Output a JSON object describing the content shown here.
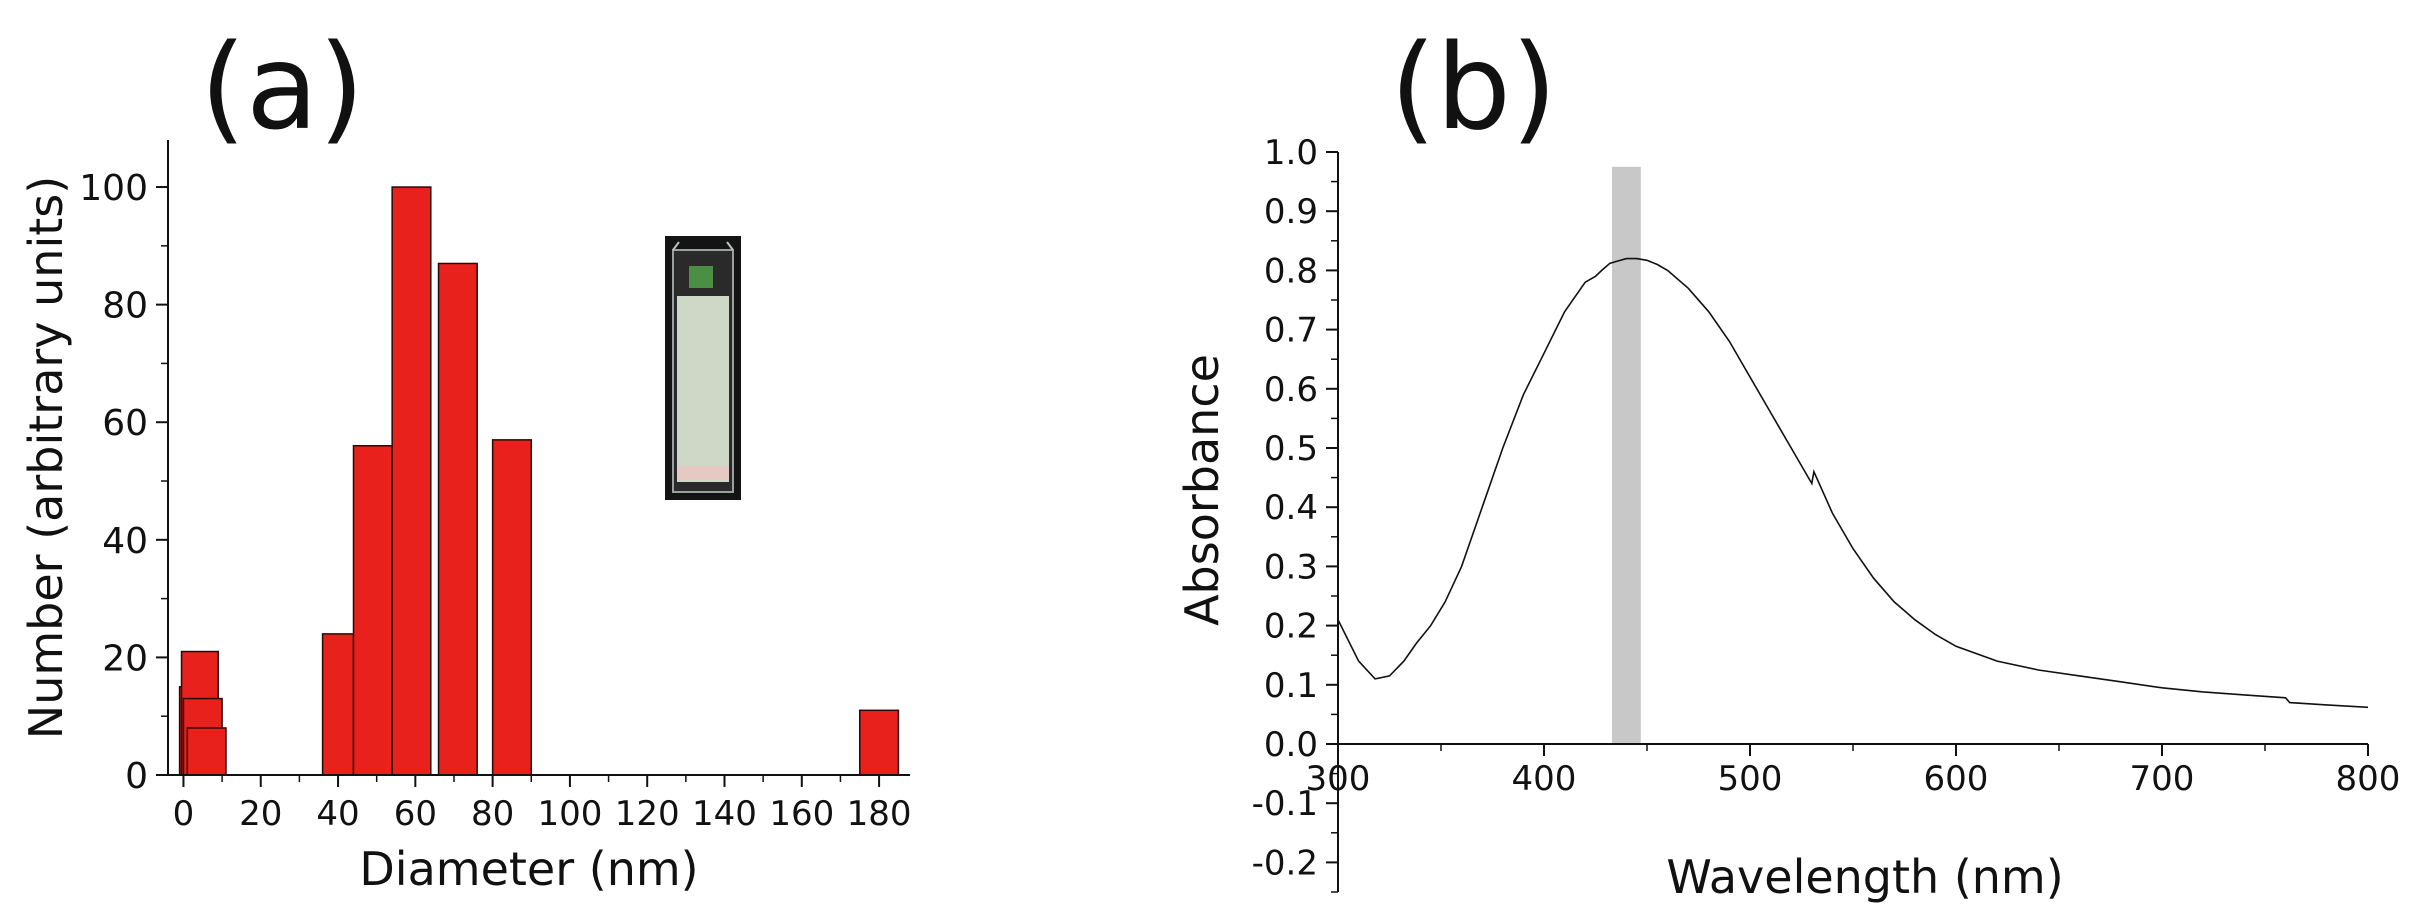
{
  "panels": {
    "a": "(a)",
    "b": "(b)"
  },
  "chart_data": [
    {
      "panel": "(a)",
      "type": "bar",
      "xlabel": "Diameter (nm)",
      "ylabel": "Number (arbitrary units)",
      "xlim": [
        -4,
        188
      ],
      "ylim": [
        0,
        108
      ],
      "xticks": [
        0,
        20,
        40,
        60,
        80,
        100,
        120,
        140,
        160,
        180
      ],
      "yticks": [
        0,
        20,
        40,
        60,
        80,
        100
      ],
      "bars": [
        {
          "x0": -1,
          "x1": 0,
          "value": 15
        },
        {
          "x0": -0.5,
          "x1": 9,
          "value": 21
        },
        {
          "x0": 0,
          "x1": 10,
          "value": 13
        },
        {
          "x0": 1,
          "x1": 11,
          "value": 8
        },
        {
          "x0": 36,
          "x1": 44,
          "value": 24
        },
        {
          "x0": 44,
          "x1": 54,
          "value": 56
        },
        {
          "x0": 54,
          "x1": 64,
          "value": 100
        },
        {
          "x0": 66,
          "x1": 76,
          "value": 87
        },
        {
          "x0": 80,
          "x1": 90,
          "value": 57
        },
        {
          "x0": 175,
          "x1": 185,
          "value": 11
        }
      ],
      "bar_color": "#e8211c",
      "inset": "cuvette photo"
    },
    {
      "panel": "(b)",
      "type": "line",
      "xlabel": "Wavelength (nm)",
      "ylabel": "Absorbance",
      "xlim": [
        300,
        800
      ],
      "ylim": [
        -0.25,
        1.0
      ],
      "xticks": [
        300,
        400,
        500,
        600,
        700,
        800
      ],
      "yticks": [
        -0.2,
        -0.1,
        0.0,
        0.1,
        0.2,
        0.3,
        0.4,
        0.5,
        0.6,
        0.7,
        0.8,
        0.9,
        1.0
      ],
      "highlight_band": {
        "x0": 433,
        "x1": 447,
        "color": "#c8c8c8"
      },
      "series": [
        {
          "x": [
            300,
            310,
            318,
            325,
            332,
            338,
            345,
            352,
            360,
            370,
            380,
            390,
            400,
            410,
            420,
            425,
            428,
            432,
            435,
            440,
            445,
            450,
            455,
            460,
            470,
            480,
            490,
            500,
            510,
            520,
            530,
            531,
            540,
            550,
            560,
            570,
            580,
            590,
            600,
            620,
            640,
            660,
            680,
            700,
            720,
            740,
            760,
            762,
            780,
            800
          ],
          "y": [
            0.21,
            0.14,
            0.11,
            0.115,
            0.14,
            0.17,
            0.2,
            0.24,
            0.3,
            0.4,
            0.5,
            0.59,
            0.66,
            0.73,
            0.78,
            0.79,
            0.8,
            0.812,
            0.815,
            0.82,
            0.82,
            0.817,
            0.81,
            0.8,
            0.77,
            0.73,
            0.68,
            0.62,
            0.56,
            0.5,
            0.44,
            0.46,
            0.39,
            0.33,
            0.28,
            0.24,
            0.21,
            0.185,
            0.165,
            0.14,
            0.125,
            0.115,
            0.105,
            0.095,
            0.088,
            0.083,
            0.078,
            0.07,
            0.066,
            0.062
          ],
          "color": "#111111"
        }
      ]
    }
  ]
}
